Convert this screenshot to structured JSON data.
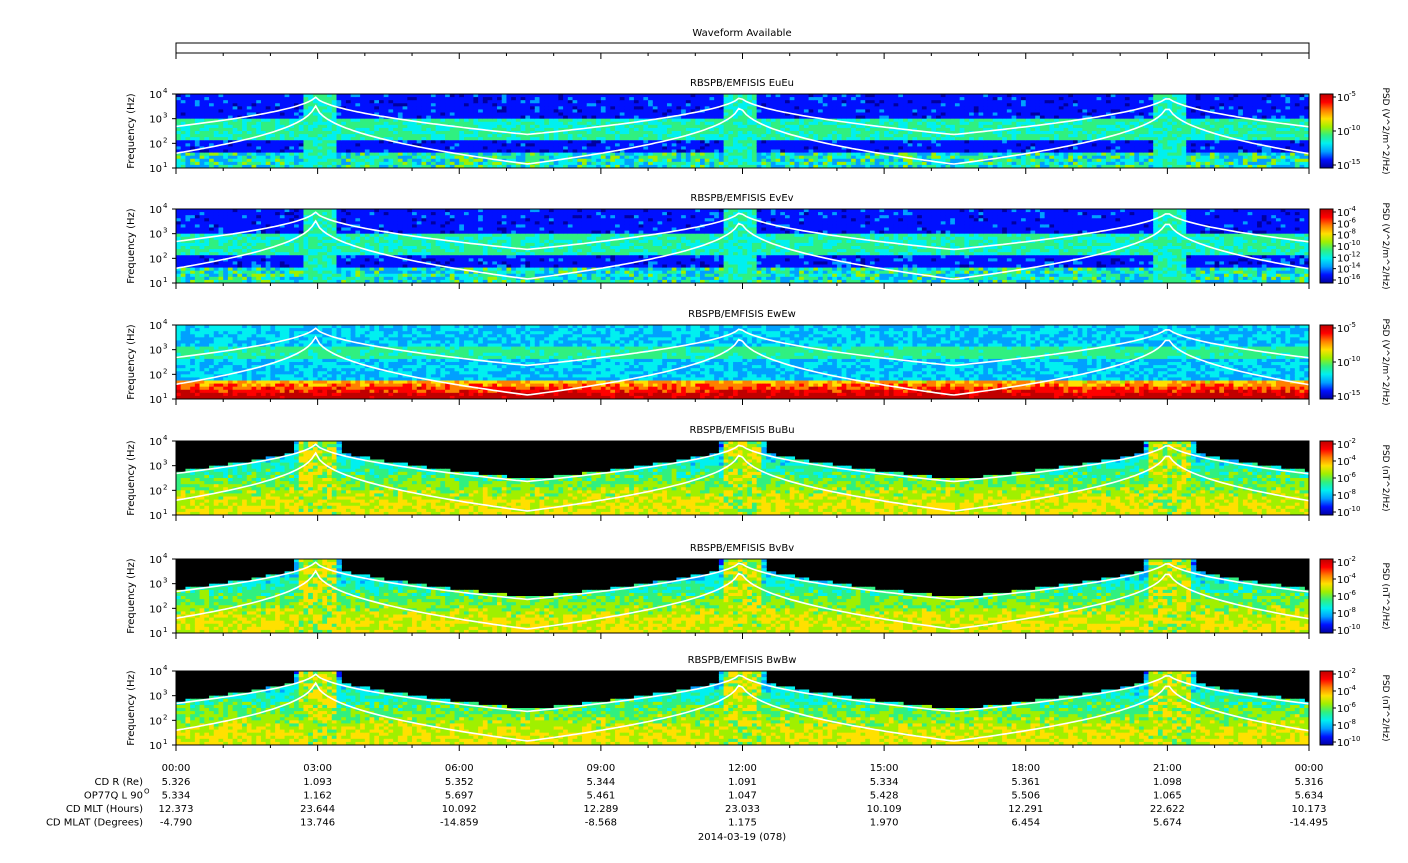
{
  "waveform": {
    "title": "Waveform Available"
  },
  "colors": {
    "colormap": [
      "#0000a0",
      "#0010ff",
      "#00a0ff",
      "#00f0f0",
      "#30f080",
      "#a0f000",
      "#ffe000",
      "#ff8000",
      "#ff0000",
      "#c00000"
    ],
    "curve": "#ffffff",
    "magnetic_background": "#000000"
  },
  "chart_data": [
    {
      "type": "heatmap",
      "title": "RBSPB/EMFISIS  EuEu",
      "ylabel": "Frequency (Hz)",
      "y_scale": "log",
      "yticks": [
        "10",
        "10",
        "10",
        "10"
      ],
      "ytick_exp": [
        "1",
        "2",
        "3",
        "4"
      ],
      "ylim": [
        10,
        10000
      ],
      "colorbar": {
        "label": "PSD (V^2/m^2/Hz)",
        "scale": "log",
        "ticks": [
          "10",
          "10",
          "10"
        ],
        "tick_exp": [
          "-5",
          "-10",
          "-15"
        ],
        "range": [
          1e-16,
          0.0001
        ]
      }
    },
    {
      "type": "heatmap",
      "title": "RBSPB/EMFISIS  EvEv",
      "ylabel": "Frequency (Hz)",
      "y_scale": "log",
      "yticks": [
        "10",
        "10",
        "10",
        "10"
      ],
      "ytick_exp": [
        "1",
        "2",
        "3",
        "4"
      ],
      "ylim": [
        10,
        10000
      ],
      "colorbar": {
        "label": "PSD (V^2/m^2/Hz)",
        "scale": "log",
        "ticks": [
          "10",
          "10",
          "10",
          "10",
          "10",
          "10",
          "10"
        ],
        "tick_exp": [
          "-4",
          "-6",
          "-8",
          "-10",
          "-12",
          "-14",
          "-16"
        ],
        "range": [
          1e-16,
          0.0001
        ]
      }
    },
    {
      "type": "heatmap",
      "title": "RBSPB/EMFISIS  EwEw",
      "ylabel": "Frequency (Hz)",
      "y_scale": "log",
      "yticks": [
        "10",
        "10",
        "10",
        "10"
      ],
      "ytick_exp": [
        "1",
        "2",
        "3",
        "4"
      ],
      "ylim": [
        10,
        10000
      ],
      "colorbar": {
        "label": "PSD (V^2/m^2/Hz)",
        "scale": "log",
        "ticks": [
          "10",
          "10",
          "10"
        ],
        "tick_exp": [
          "-5",
          "-10",
          "-15"
        ],
        "range": [
          1e-16,
          0.0001
        ]
      }
    },
    {
      "type": "heatmap",
      "title": "RBSPB/EMFISIS  BuBu",
      "ylabel": "Frequency (Hz)",
      "y_scale": "log",
      "yticks": [
        "10",
        "10",
        "10",
        "10"
      ],
      "ytick_exp": [
        "1",
        "2",
        "3",
        "4"
      ],
      "ylim": [
        10,
        10000
      ],
      "colorbar": {
        "label": "PSD (nT^2/Hz)",
        "scale": "log",
        "ticks": [
          "10",
          "10",
          "10",
          "10",
          "10"
        ],
        "tick_exp": [
          "-2",
          "-4",
          "-6",
          "-8",
          "-10"
        ],
        "range": [
          1e-10,
          0.01
        ]
      }
    },
    {
      "type": "heatmap",
      "title": "RBSPB/EMFISIS  BvBv",
      "ylabel": "Frequency (Hz)",
      "y_scale": "log",
      "yticks": [
        "10",
        "10",
        "10",
        "10"
      ],
      "ytick_exp": [
        "1",
        "2",
        "3",
        "4"
      ],
      "ylim": [
        10,
        10000
      ],
      "colorbar": {
        "label": "PSD (nT^2/Hz)",
        "scale": "log",
        "ticks": [
          "10",
          "10",
          "10",
          "10",
          "10"
        ],
        "tick_exp": [
          "-2",
          "-4",
          "-6",
          "-8",
          "-10"
        ],
        "range": [
          1e-10,
          0.01
        ]
      }
    },
    {
      "type": "heatmap",
      "title": "RBSPB/EMFISIS  BwBw",
      "ylabel": "Frequency (Hz)",
      "y_scale": "log",
      "yticks": [
        "10",
        "10",
        "10",
        "10"
      ],
      "ytick_exp": [
        "1",
        "2",
        "3",
        "4"
      ],
      "ylim": [
        10,
        10000
      ],
      "colorbar": {
        "label": "PSD (nT^2/Hz)",
        "scale": "log",
        "ticks": [
          "10",
          "10",
          "10",
          "10",
          "10"
        ],
        "tick_exp": [
          "-2",
          "-4",
          "-6",
          "-8",
          "-10"
        ],
        "range": [
          1e-10,
          0.01
        ]
      }
    }
  ],
  "xaxis": {
    "ticks": [
      "00:00",
      "03:00",
      "06:00",
      "09:00",
      "12:00",
      "15:00",
      "18:00",
      "21:00",
      "00:00"
    ],
    "date": "2014-03-19 (078)",
    "rows": [
      {
        "label": "CD R (Re)",
        "values": [
          "5.326",
          "1.093",
          "5.352",
          "5.344",
          "1.091",
          "5.334",
          "5.361",
          "1.098",
          "5.316"
        ]
      },
      {
        "label": "OP77Q L 90",
        "label_sup": "O",
        "values": [
          "5.334",
          "1.162",
          "5.697",
          "5.461",
          "1.047",
          "5.428",
          "5.506",
          "1.065",
          "5.634"
        ]
      },
      {
        "label": "CD MLT (Hours)",
        "values": [
          "12.373",
          "23.644",
          "10.092",
          "12.289",
          "23.033",
          "10.109",
          "12.291",
          "22.622",
          "10.173"
        ]
      },
      {
        "label": "CD MLAT (Degrees)",
        "values": [
          "-4.790",
          "13.746",
          "-14.859",
          "-8.568",
          "1.175",
          "1.970",
          "6.454",
          "5.674",
          "-14.495"
        ]
      }
    ]
  }
}
